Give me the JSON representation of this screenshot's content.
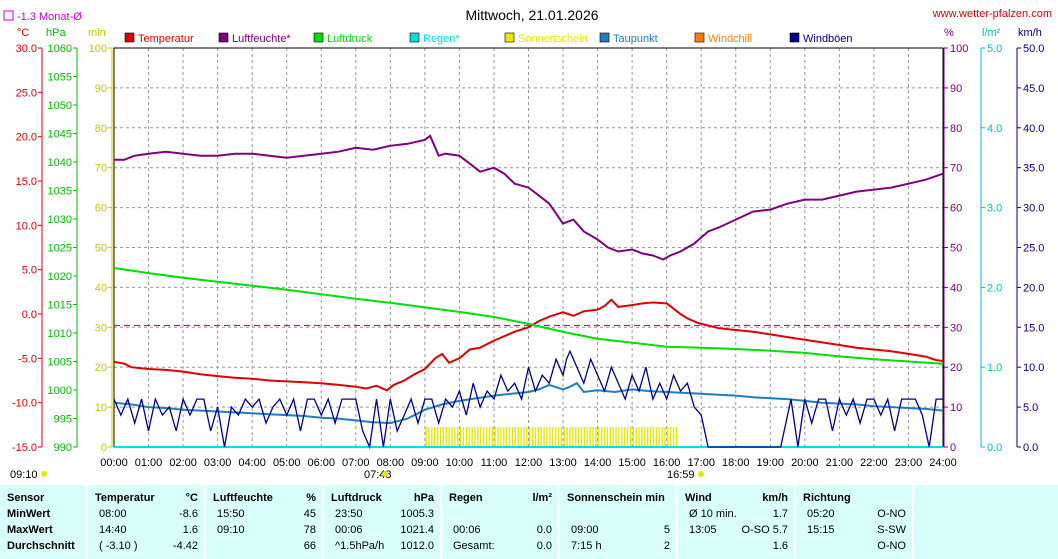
{
  "header": {
    "title": "Mittwoch, 21.01.2026",
    "site": "www.wetter-pfalzen.com",
    "monthly_avg_label": "-1.3 Monat-Ø"
  },
  "axis_units": {
    "temperature": "°C",
    "pressure": "hPa",
    "sunshine": "min",
    "humidity": "%",
    "rain": "l/m²",
    "wind": "km/h"
  },
  "legend": [
    {
      "label": "Temperatur",
      "color": "#e00000"
    },
    {
      "label": "Luftfeuchte*",
      "color": "#800080"
    },
    {
      "label": "Luftdruck",
      "color": "#00e000"
    },
    {
      "label": "Regen*",
      "color": "#00e0e0"
    },
    {
      "label": "Sonnenschein",
      "color": "#e8e800"
    },
    {
      "label": "Taupunkt",
      "color": "#1e7fc0"
    },
    {
      "label": "Windchill",
      "color": "#ff8000"
    },
    {
      "label": "Windböen",
      "color": "#000090"
    }
  ],
  "markers": {
    "sunrise": "07:48",
    "sunset": "16:59"
  },
  "chart_data": {
    "type": "line",
    "title": "Mittwoch, 21.01.2026",
    "x_ticks": [
      "00:00",
      "01:00",
      "02:00",
      "03:00",
      "04:00",
      "05:00",
      "06:00",
      "07:00",
      "08:00",
      "09:00",
      "10:00",
      "11:00",
      "12:00",
      "13:00",
      "14:00",
      "15:00",
      "16:00",
      "17:00",
      "18:00",
      "19:00",
      "20:00",
      "21:00",
      "22:00",
      "23:00",
      "24:00"
    ],
    "axes": {
      "temperature": {
        "unit": "°C",
        "range": [
          -15,
          30
        ],
        "ticks": [
          "30.0",
          "25.0",
          "20.0",
          "15.0",
          "10.0",
          "5.0",
          "0.0",
          "-5.0",
          "-10.0",
          "-15.0"
        ]
      },
      "pressure": {
        "unit": "hPa",
        "range": [
          990,
          1060
        ],
        "ticks": [
          "1060",
          "1055",
          "1050",
          "1045",
          "1040",
          "1035",
          "1030",
          "1025",
          "1020",
          "1015",
          "1010",
          "1005",
          "1000",
          "995",
          "990"
        ]
      },
      "sunshine": {
        "unit": "min",
        "range": [
          0,
          100
        ],
        "ticks": [
          "100",
          "90",
          "80",
          "70",
          "60",
          "50",
          "40",
          "30",
          "20",
          "10",
          "0"
        ]
      },
      "humidity": {
        "unit": "%",
        "range": [
          0,
          100
        ],
        "ticks": [
          "100",
          "90",
          "80",
          "70",
          "60",
          "50",
          "40",
          "30",
          "20",
          "10",
          "0"
        ]
      },
      "rain": {
        "unit": "l/m²",
        "range": [
          0,
          5
        ],
        "ticks": [
          "5.0",
          "4.0",
          "3.0",
          "2.0",
          "1.0",
          "0.0"
        ]
      },
      "wind": {
        "unit": "km/h",
        "range": [
          0,
          50
        ],
        "ticks": [
          "50.0",
          "45.0",
          "40.0",
          "35.0",
          "30.0",
          "25.0",
          "20.0",
          "15.0",
          "10.0",
          "5.0",
          "0.0"
        ]
      }
    },
    "monthly_avg_temperature": -1.3,
    "grid": true,
    "series": [
      {
        "name": "Temperatur",
        "axis": "temperature",
        "color": "#e00000",
        "x": [
          0,
          0.3,
          0.5,
          1,
          1.5,
          2,
          2.5,
          3,
          3.5,
          4,
          4.5,
          5,
          5.5,
          6,
          6.5,
          7,
          7.3,
          7.6,
          7.9,
          8.1,
          8.4,
          8.7,
          9,
          9.3,
          9.5,
          9.7,
          10,
          10.3,
          10.6,
          11,
          11.3,
          11.6,
          12,
          12.3,
          12.6,
          13,
          13.3,
          13.6,
          14,
          14.2,
          14.4,
          14.6,
          15,
          15.3,
          15.6,
          16,
          16.2,
          16.4,
          16.6,
          16.9,
          17.2,
          17.5,
          18,
          18.5,
          19,
          19.5,
          20,
          20.5,
          21,
          21.5,
          22,
          22.5,
          23,
          23.5,
          23.8,
          24
        ],
        "values": [
          -5.4,
          -5.6,
          -6.0,
          -6.2,
          -6.3,
          -6.5,
          -6.8,
          -7.0,
          -7.2,
          -7.3,
          -7.5,
          -7.6,
          -7.7,
          -7.8,
          -8.0,
          -8.2,
          -8.4,
          -8.1,
          -8.6,
          -8.0,
          -7.5,
          -6.8,
          -6.2,
          -5.0,
          -4.5,
          -5.5,
          -5.0,
          -4.0,
          -3.8,
          -3.0,
          -2.5,
          -2.0,
          -1.5,
          -0.8,
          -0.3,
          0.2,
          -0.2,
          0.3,
          0.5,
          0.9,
          1.6,
          0.8,
          1.0,
          1.2,
          1.3,
          1.2,
          0.6,
          0.0,
          -0.5,
          -1.0,
          -1.3,
          -1.6,
          -1.8,
          -2.0,
          -2.3,
          -2.6,
          -2.9,
          -3.2,
          -3.5,
          -3.8,
          -4.0,
          -4.2,
          -4.5,
          -4.8,
          -5.2,
          -5.3
        ]
      },
      {
        "name": "Luftfeuchte*",
        "axis": "humidity",
        "color": "#800080",
        "x": [
          0,
          0.3,
          0.6,
          1,
          1.5,
          2,
          2.5,
          3,
          3.5,
          4,
          4.5,
          5,
          5.5,
          6,
          6.5,
          7,
          7.5,
          8,
          8.5,
          9,
          9.15,
          9.4,
          9.6,
          10,
          10.3,
          10.6,
          11,
          11.3,
          11.6,
          12,
          12.3,
          12.6,
          13,
          13.3,
          13.6,
          14,
          14.3,
          14.6,
          15,
          15.3,
          15.6,
          15.9,
          16.1,
          16.4,
          16.8,
          17.2,
          17.5,
          18,
          18.5,
          19,
          19.5,
          20,
          20.5,
          21,
          21.5,
          22,
          22.5,
          23,
          23.5,
          24
        ],
        "values": [
          72,
          72,
          73,
          73.5,
          74,
          73.5,
          73,
          73,
          73.5,
          73.5,
          73,
          72.5,
          73,
          73.5,
          74,
          75,
          74.5,
          75.5,
          76,
          77,
          78,
          73,
          73.5,
          73,
          71,
          69,
          70,
          68.5,
          66,
          65,
          63,
          61,
          56,
          57,
          54,
          52,
          50,
          49,
          49.5,
          48.5,
          48,
          47,
          48,
          49,
          51,
          54,
          55,
          57,
          59,
          59.5,
          61,
          62,
          62,
          63,
          64,
          64.5,
          65,
          66,
          67,
          68.5
        ]
      },
      {
        "name": "Luftdruck",
        "axis": "pressure",
        "color": "#00e000",
        "x": [
          0,
          1,
          2,
          3,
          4,
          5,
          6,
          7,
          8,
          9,
          10,
          11,
          12,
          13,
          14,
          15,
          16,
          17,
          18,
          19,
          20,
          21,
          22,
          23,
          24
        ],
        "values": [
          1021.4,
          1020.5,
          1019.7,
          1019.0,
          1018.3,
          1017.6,
          1016.8,
          1016.0,
          1015.3,
          1014.5,
          1013.7,
          1012.8,
          1011.6,
          1010.2,
          1009.0,
          1008.3,
          1007.6,
          1007.4,
          1007.2,
          1006.9,
          1006.5,
          1005.9,
          1005.4,
          1005.0,
          1004.6
        ]
      },
      {
        "name": "Regen*",
        "axis": "rain",
        "color": "#00e0e0",
        "x": [
          0,
          24
        ],
        "values": [
          0.0,
          0.0
        ]
      },
      {
        "name": "Sonnenschein",
        "axis": "sunshine",
        "color": "#e8e800",
        "x": [
          9.0,
          9.5,
          10,
          10.5,
          11,
          11.5,
          12,
          12.5,
          13,
          13.5,
          14,
          14.5,
          15,
          15.5,
          16,
          16.3
        ],
        "values": [
          5,
          5,
          5,
          5,
          5,
          5,
          5,
          5,
          5,
          5,
          5,
          5,
          5,
          5,
          5,
          5
        ]
      },
      {
        "name": "Taupunkt",
        "axis": "temperature",
        "color": "#1e7fc0",
        "x": [
          0,
          0.5,
          1,
          1.5,
          2,
          2.5,
          3,
          3.5,
          4,
          4.5,
          5,
          5.5,
          6,
          6.5,
          7,
          7.5,
          8,
          8.5,
          9,
          9.5,
          10,
          10.5,
          11,
          11.5,
          12,
          12.3,
          12.6,
          13,
          13.2,
          13.4,
          13.6,
          14,
          14.5,
          15,
          15.5,
          16,
          16.5,
          17,
          17.5,
          18,
          18.5,
          19,
          19.5,
          20,
          20.5,
          21,
          21.5,
          22,
          22.5,
          23,
          23.5,
          24
        ],
        "values": [
          -10.0,
          -10.2,
          -10.5,
          -10.6,
          -10.8,
          -10.9,
          -11.0,
          -11.1,
          -11.2,
          -11.3,
          -11.4,
          -11.5,
          -11.7,
          -11.8,
          -12.0,
          -12.2,
          -12.3,
          -11.8,
          -10.8,
          -10.2,
          -9.8,
          -9.5,
          -9.2,
          -9.0,
          -8.8,
          -8.5,
          -8.0,
          -8.5,
          -8.2,
          -7.8,
          -8.8,
          -8.6,
          -8.8,
          -8.5,
          -8.7,
          -8.8,
          -8.9,
          -9.0,
          -9.1,
          -9.2,
          -9.4,
          -9.5,
          -9.6,
          -9.8,
          -10.0,
          -10.1,
          -10.2,
          -10.4,
          -10.5,
          -10.6,
          -10.7,
          -10.9
        ]
      },
      {
        "name": "Windböen",
        "axis": "wind",
        "color": "#000090",
        "x": [
          0,
          0.2,
          0.4,
          0.6,
          0.8,
          1.0,
          1.2,
          1.4,
          1.6,
          1.8,
          2.0,
          2.2,
          2.4,
          2.6,
          2.8,
          3.0,
          3.2,
          3.4,
          3.6,
          3.8,
          4.0,
          4.2,
          4.4,
          4.6,
          4.8,
          5.0,
          5.2,
          5.4,
          5.6,
          5.8,
          6.0,
          6.2,
          6.4,
          6.6,
          6.8,
          7.0,
          7.2,
          7.4,
          7.6,
          7.8,
          8.0,
          8.2,
          8.4,
          8.6,
          8.8,
          9.0,
          9.2,
          9.4,
          9.6,
          9.8,
          10.0,
          10.2,
          10.4,
          10.6,
          10.8,
          11.0,
          11.2,
          11.4,
          11.6,
          11.8,
          12.0,
          12.2,
          12.4,
          12.6,
          12.8,
          13.0,
          13.1,
          13.2,
          13.4,
          13.6,
          13.8,
          14.0,
          14.2,
          14.4,
          14.6,
          14.8,
          15.0,
          15.2,
          15.4,
          15.6,
          15.8,
          16.0,
          16.2,
          16.4,
          16.6,
          16.8,
          17.0,
          17.2,
          17.6,
          18,
          18.5,
          19,
          19.3,
          19.6,
          19.8,
          20.0,
          20.2,
          20.4,
          20.6,
          20.8,
          21.0,
          21.2,
          21.4,
          21.6,
          21.8,
          22.0,
          22.2,
          22.4,
          22.6,
          22.8,
          23.0,
          23.2,
          23.4,
          23.6,
          23.8,
          24
        ],
        "values": [
          6,
          4,
          6,
          3,
          6,
          2,
          6,
          4,
          5,
          2,
          6,
          4,
          6,
          6,
          2,
          5,
          0,
          5,
          4,
          6,
          5,
          6,
          3,
          5,
          6,
          4,
          6,
          2,
          6,
          6,
          4,
          6,
          3,
          6,
          6,
          6,
          2,
          0,
          6,
          0,
          6,
          2,
          4,
          6,
          3,
          6,
          6,
          3,
          6,
          5,
          7,
          4,
          8,
          5,
          7,
          6,
          9,
          7,
          8,
          6,
          10,
          7,
          9,
          8,
          11,
          9,
          11,
          12,
          10,
          8,
          11,
          9,
          7,
          10,
          8,
          6,
          9,
          7,
          10,
          6,
          8,
          6,
          9,
          7,
          8,
          5,
          4,
          0,
          0,
          0,
          0,
          0,
          0,
          6,
          0,
          6,
          3,
          6,
          6,
          2,
          6,
          4,
          6,
          3,
          6,
          6,
          4,
          6,
          2,
          6,
          6,
          6,
          4,
          0,
          6,
          6
        ]
      }
    ]
  },
  "stats": {
    "sensor": {
      "title": "Sensor",
      "rows": [
        "MinWert",
        "MaxWert",
        "Durchschnitt"
      ]
    },
    "temperature": {
      "title": "Temperatur",
      "unit": "°C",
      "rows": [
        {
          "t": "08:00",
          "v": "-8.6"
        },
        {
          "t": "14:40",
          "v": "1.6"
        },
        {
          "t": "( -3.10 )",
          "v": "-4.42"
        }
      ]
    },
    "humidity": {
      "title": "Luftfeuchte",
      "unit": "%",
      "rows": [
        {
          "t": "15:50",
          "v": "45"
        },
        {
          "t": "09:10",
          "v": "78"
        },
        {
          "t": "",
          "v": "66"
        }
      ]
    },
    "pressure": {
      "title": "Luftdruck",
      "unit": "hPa",
      "rows": [
        {
          "t": "23:50",
          "v": "1005.3"
        },
        {
          "t": "00:06",
          "v": "1021.4"
        },
        {
          "t": "^1.5hPa/h",
          "v": "1012.0"
        }
      ]
    },
    "rain": {
      "title": "Regen",
      "unit": "l/m²",
      "rows": [
        {
          "t": "",
          "v": ""
        },
        {
          "t": "00:06",
          "v": "0.0"
        },
        {
          "t": "Gesamt:",
          "v": "0.0"
        }
      ]
    },
    "sunshine": {
      "title": "Sonnenschein min",
      "unit": "",
      "rows": [
        {
          "t": "",
          "v": ""
        },
        {
          "t": "09:00",
          "v": "5"
        },
        {
          "t": "7:15 h",
          "v": "2"
        }
      ]
    },
    "wind": {
      "title": "Wind",
      "unit": "km/h",
      "rows": [
        {
          "t": "Ø 10 min.",
          "v": "1.7"
        },
        {
          "t": "13:05",
          "v": "O-SO 5.7"
        },
        {
          "t": "",
          "v": "1.6"
        }
      ]
    },
    "direction": {
      "title": "Richtung",
      "rows": [
        {
          "t": "05:20",
          "v": "O-NO"
        },
        {
          "t": "15:15",
          "v": "S-SW"
        },
        {
          "t": "",
          "v": "O-NO"
        }
      ]
    }
  },
  "footer": {
    "time": "09:10"
  }
}
